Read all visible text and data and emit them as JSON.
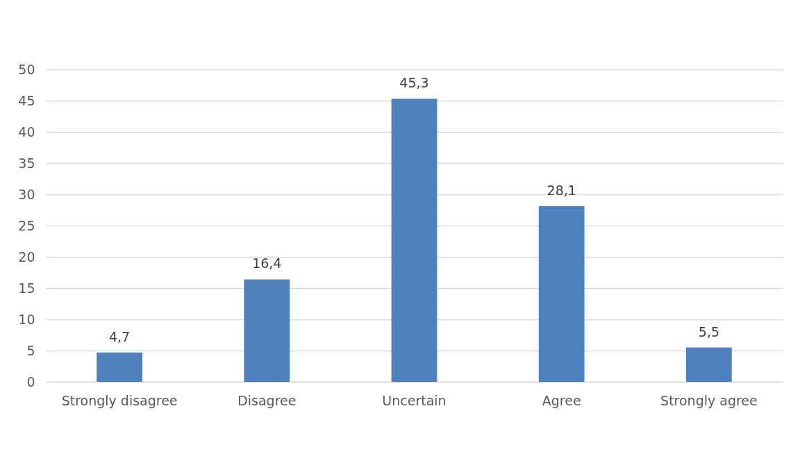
{
  "chart_data": {
    "type": "bar",
    "categories": [
      "Strongly disagree",
      "Disagree",
      "Uncertain",
      "Agree",
      "Strongly agree"
    ],
    "values": [
      4.7,
      16.4,
      45.3,
      28.1,
      5.5
    ],
    "value_labels": [
      "4,7",
      "16,4",
      "45,3",
      "28,1",
      "5,5"
    ],
    "color": "#4f81bd",
    "ylim": [
      0,
      50
    ],
    "yticks": [
      0,
      5,
      10,
      15,
      20,
      25,
      30,
      35,
      40,
      45,
      50
    ],
    "grid": "y"
  }
}
